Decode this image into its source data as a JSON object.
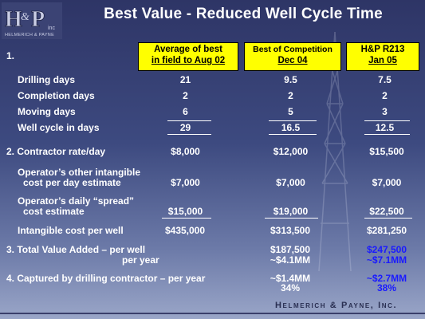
{
  "title": "Best Value - Reduced Well Cycle Time",
  "logo": {
    "letters": "H&P",
    "inc": "inc",
    "company": "Helmerich & Payne"
  },
  "section1_number": "1.",
  "columns": [
    {
      "line1": "Average of best",
      "line2": "in field to Aug 02"
    },
    {
      "line1": "Best of Competition",
      "line2": "Dec 04"
    },
    {
      "line1": "H&P R213",
      "line2": "Jan 05"
    }
  ],
  "rows": [
    {
      "label": "Drilling days",
      "v1": "21",
      "v2": "9.5",
      "v3": "7.5"
    },
    {
      "label": "Completion days",
      "v1": "2",
      "v2": "2",
      "v3": "2"
    },
    {
      "label": "Moving days",
      "v1": "6",
      "v2": "5",
      "v3": "3"
    },
    {
      "label": "Well cycle in days",
      "v1": "29",
      "v2": "16.5",
      "v3": "12.5"
    }
  ],
  "contractor_rate": {
    "label": "2. Contractor rate/day",
    "v1": "$8,000",
    "v2": "$12,000",
    "v3": "$15,500"
  },
  "intangible_day": {
    "line1": "Operator’s other intangible",
    "line2": "cost per day  estimate",
    "v1": "$7,000",
    "v2": "$7,000",
    "v3": "$7,000"
  },
  "spread": {
    "line1": "Operator’s daily “spread”",
    "line2": "cost estimate",
    "v1": "$15,000",
    "v2": "$19,000",
    "v3": "$22,500"
  },
  "intangible_well": {
    "label": "Intangible cost per well",
    "v1": "$435,000",
    "v2": "$313,500",
    "v3": "$281,250"
  },
  "total_value": {
    "line1": "3. Total Value Added – per well",
    "line2": "per year",
    "v2a": "$187,500",
    "v2b": "~$4.1MM",
    "v3a": "$247,500",
    "v3b": "~$7.1MM"
  },
  "captured": {
    "label": "4. Captured by drilling contractor – per year",
    "v2a": "~$1.4MM",
    "v2b": "34%",
    "v3a": "~$2.7MM",
    "v3b": "38%"
  },
  "footer_company": "Helmerich & Payne, Inc.",
  "colors": {
    "header_fill": "#ffff00",
    "highlight_text": "#1a1aff"
  }
}
